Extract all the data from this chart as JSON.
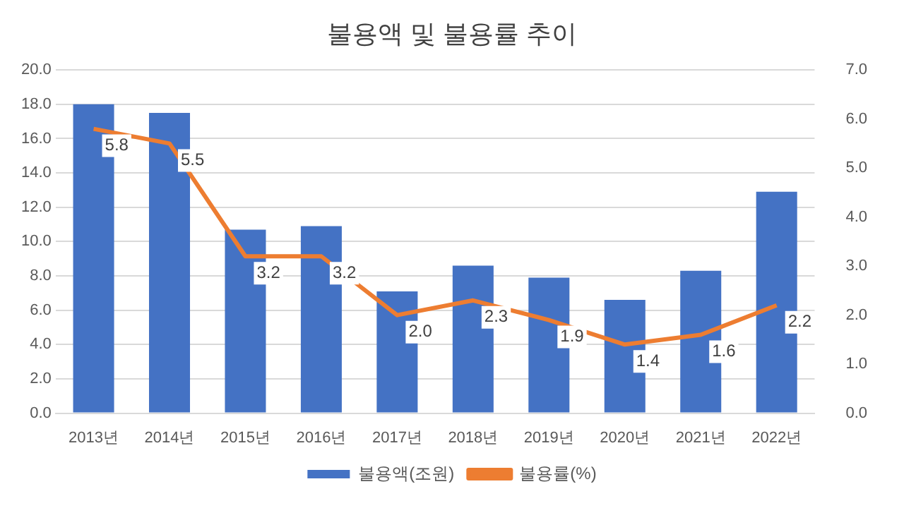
{
  "chart_data": {
    "type": "bar",
    "title": "불용액 및 불용률 추이",
    "categories": [
      "2013년",
      "2014년",
      "2015년",
      "2016년",
      "2017년",
      "2018년",
      "2019년",
      "2020년",
      "2021년",
      "2022년"
    ],
    "series": [
      {
        "name": "불용액(조원)",
        "color": "#4472c4",
        "values": [
          18.0,
          17.5,
          10.7,
          10.9,
          7.1,
          8.6,
          7.9,
          6.6,
          8.3,
          12.9
        ]
      },
      {
        "name": "불용률(%)",
        "type": "line",
        "axis": "y2",
        "color": "#ed7d31",
        "values": [
          5.8,
          5.5,
          3.2,
          3.2,
          2.0,
          2.3,
          1.9,
          1.4,
          1.6,
          2.2
        ],
        "value_labels": [
          "5.8",
          "5.5",
          "3.2",
          "3.2",
          "2.0",
          "2.3",
          "1.9",
          "1.4",
          "1.6",
          "2.2"
        ]
      }
    ],
    "ylim": [
      0,
      20
    ],
    "yticks": [
      {
        "value": 0,
        "label": "0.0"
      },
      {
        "value": 2,
        "label": "2.0"
      },
      {
        "value": 4,
        "label": "4.0"
      },
      {
        "value": 6,
        "label": "6.0"
      },
      {
        "value": 8,
        "label": "8.0"
      },
      {
        "value": 10,
        "label": "10.0"
      },
      {
        "value": 12,
        "label": "12.0"
      },
      {
        "value": 14,
        "label": "14.0"
      },
      {
        "value": 16,
        "label": "16.0"
      },
      {
        "value": 18,
        "label": "18.0"
      },
      {
        "value": 20,
        "label": "20.0"
      }
    ],
    "y2lim": [
      0,
      7
    ],
    "y2ticks": [
      {
        "value": 0,
        "label": "0.0"
      },
      {
        "value": 1,
        "label": "1.0"
      },
      {
        "value": 2,
        "label": "2.0"
      },
      {
        "value": 3,
        "label": "3.0"
      },
      {
        "value": 4,
        "label": "4.0"
      },
      {
        "value": 5,
        "label": "5.0"
      },
      {
        "value": 6,
        "label": "6.0"
      },
      {
        "value": 7,
        "label": "7.0"
      }
    ],
    "grid": "y",
    "legend": "bottom",
    "marker": "none"
  }
}
